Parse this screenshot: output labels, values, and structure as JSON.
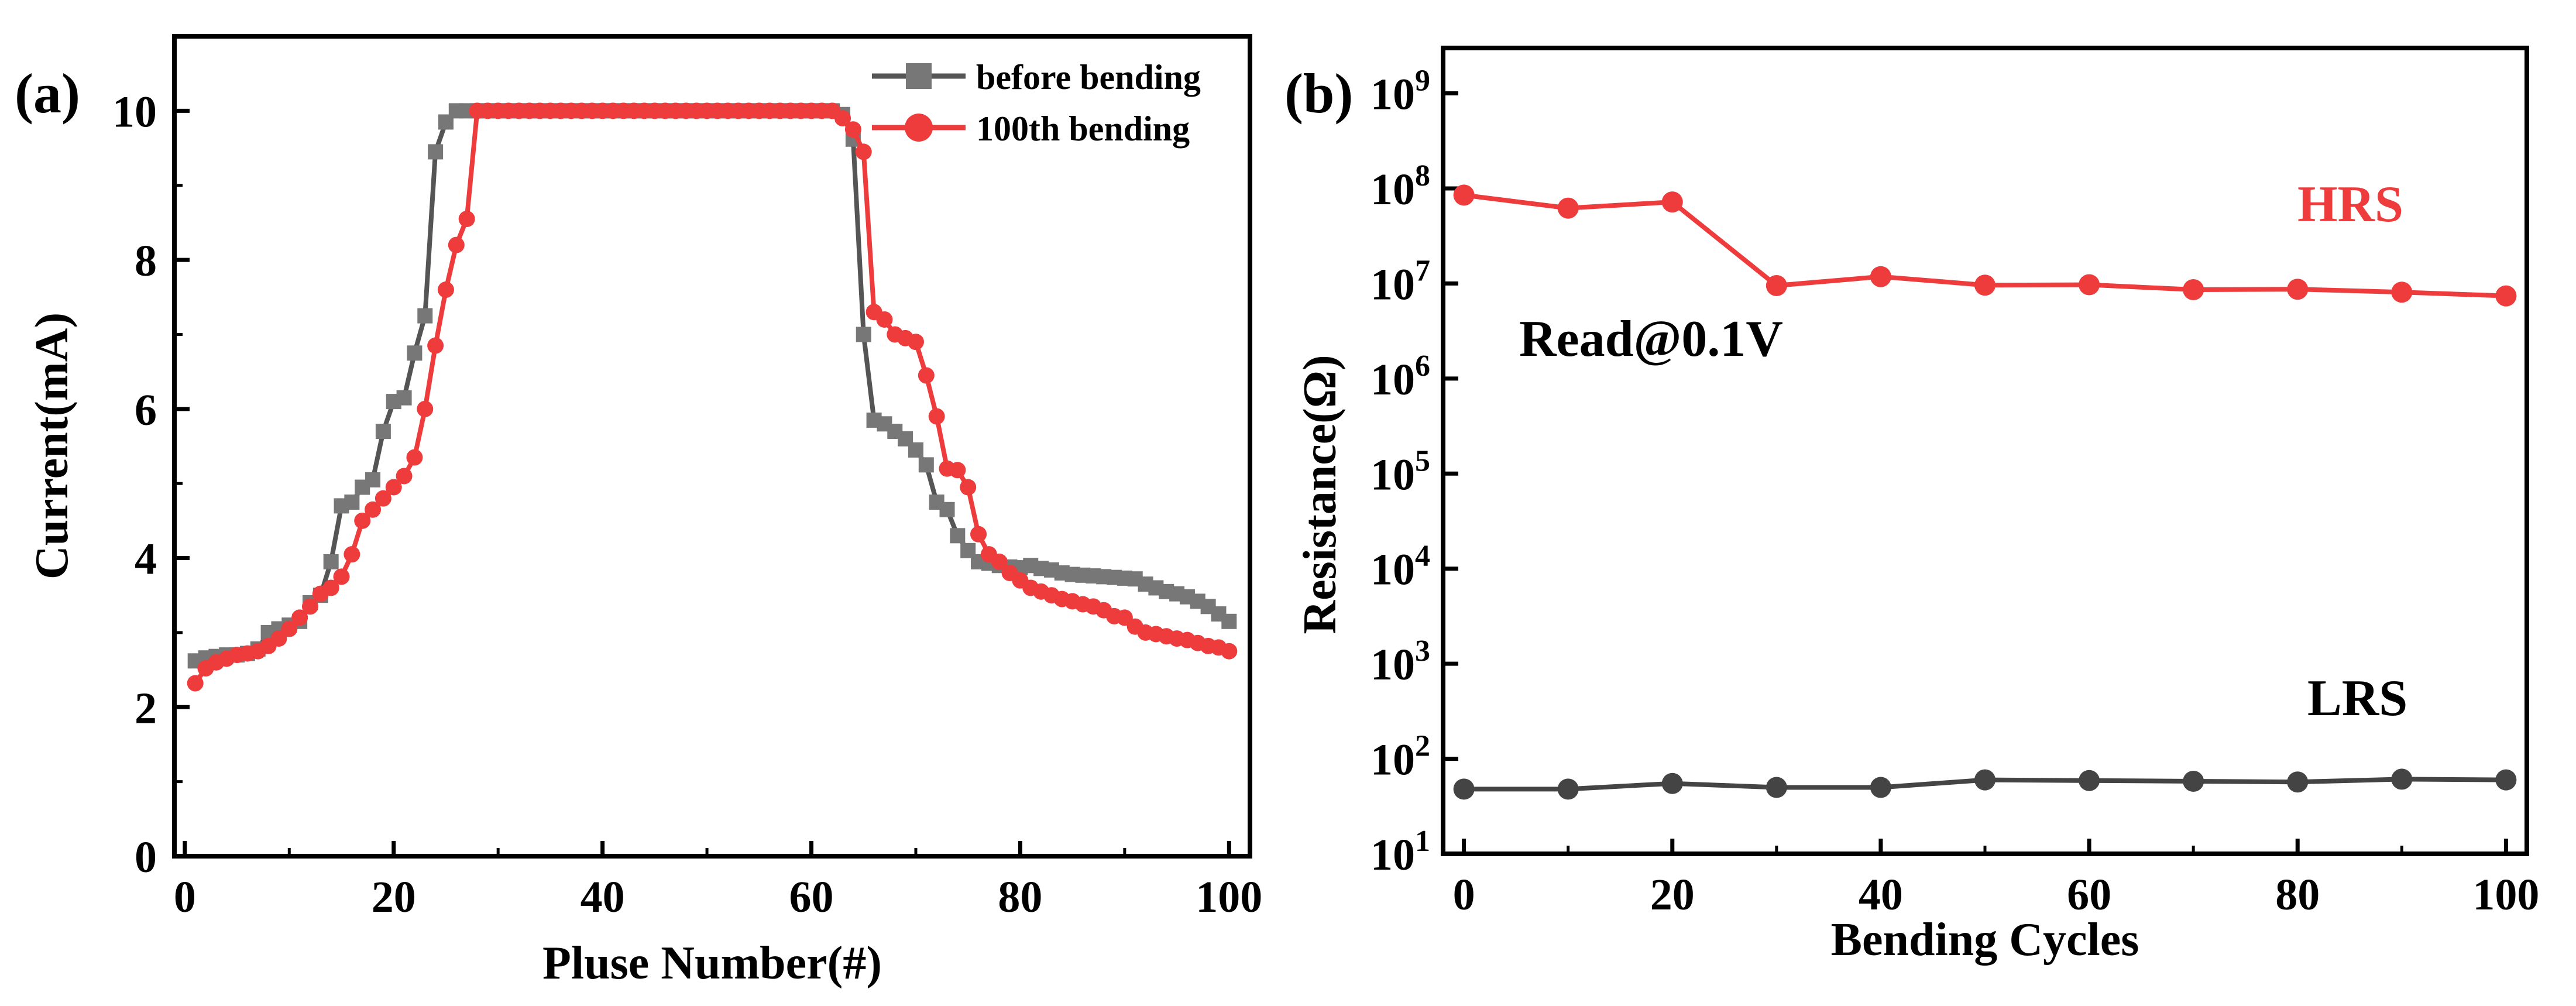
{
  "chart_data": [
    {
      "panel": "(a)",
      "type": "line",
      "xlabel": "Pluse Number(#)",
      "ylabel": "Current(mA)",
      "xlim": [
        -1,
        102
      ],
      "ylim": [
        0,
        11
      ],
      "xticks": [
        0,
        20,
        40,
        60,
        80,
        100
      ],
      "yticks": [
        0,
        2,
        4,
        6,
        8,
        10
      ],
      "xtick_labels": [
        "0",
        "20",
        "40",
        "60",
        "80",
        "100"
      ],
      "ytick_labels": [
        "0",
        "2",
        "4",
        "6",
        "8",
        "10"
      ],
      "legend": {
        "placement": "top-right",
        "entries": [
          "before bending",
          "100th bending"
        ]
      },
      "series": [
        {
          "name": "before bending",
          "color": "#555555",
          "marker": "square",
          "x": [
            1,
            2,
            3,
            4,
            5,
            6,
            7,
            8,
            9,
            10,
            11,
            12,
            13,
            14,
            15,
            16,
            17,
            18,
            19,
            20,
            21,
            22,
            23,
            24,
            25,
            26,
            27,
            28,
            29,
            30,
            31,
            32,
            33,
            34,
            35,
            36,
            37,
            38,
            39,
            40,
            41,
            42,
            43,
            44,
            45,
            46,
            47,
            48,
            49,
            50,
            51,
            52,
            53,
            54,
            55,
            56,
            57,
            58,
            59,
            60,
            61,
            62,
            63,
            64,
            65,
            66,
            67,
            68,
            69,
            70,
            71,
            72,
            73,
            74,
            75,
            76,
            77,
            78,
            79,
            80,
            81,
            82,
            83,
            84,
            85,
            86,
            87,
            88,
            89,
            90,
            91,
            92,
            93,
            94,
            95,
            96,
            97,
            98,
            99,
            100
          ],
          "y": [
            2.62,
            2.66,
            2.68,
            2.7,
            2.7,
            2.72,
            2.78,
            3.0,
            3.05,
            3.1,
            3.15,
            3.4,
            3.5,
            3.95,
            4.7,
            4.75,
            4.95,
            5.05,
            5.7,
            6.1,
            6.15,
            6.75,
            7.25,
            9.45,
            9.85,
            10,
            10,
            10,
            10,
            10,
            10,
            10,
            10,
            10,
            10,
            10,
            10,
            10,
            10,
            10,
            10,
            10,
            10,
            10,
            10,
            10,
            10,
            10,
            10,
            10,
            10,
            10,
            10,
            10,
            10,
            10,
            10,
            10,
            10,
            10,
            10,
            10,
            9.95,
            9.62,
            7.0,
            5.85,
            5.8,
            5.7,
            5.6,
            5.45,
            5.25,
            4.75,
            4.65,
            4.3,
            4.1,
            3.95,
            3.93,
            3.9,
            3.88,
            3.87,
            3.9,
            3.86,
            3.84,
            3.8,
            3.78,
            3.77,
            3.76,
            3.75,
            3.74,
            3.73,
            3.72,
            3.65,
            3.6,
            3.55,
            3.52,
            3.48,
            3.42,
            3.35,
            3.25,
            3.15
          ]
        },
        {
          "name": "100th bending",
          "color": "#ee3b3b",
          "marker": "circle",
          "x": [
            1,
            2,
            3,
            4,
            5,
            6,
            7,
            8,
            9,
            10,
            11,
            12,
            13,
            14,
            15,
            16,
            17,
            18,
            19,
            20,
            21,
            22,
            23,
            24,
            25,
            26,
            27,
            28,
            29,
            30,
            31,
            32,
            33,
            34,
            35,
            36,
            37,
            38,
            39,
            40,
            41,
            42,
            43,
            44,
            45,
            46,
            47,
            48,
            49,
            50,
            51,
            52,
            53,
            54,
            55,
            56,
            57,
            58,
            59,
            60,
            61,
            62,
            63,
            64,
            65,
            66,
            67,
            68,
            69,
            70,
            71,
            72,
            73,
            74,
            75,
            76,
            77,
            78,
            79,
            80,
            81,
            82,
            83,
            84,
            85,
            86,
            87,
            88,
            89,
            90,
            91,
            92,
            93,
            94,
            95,
            96,
            97,
            98,
            99,
            100
          ],
          "y": [
            2.32,
            2.52,
            2.6,
            2.65,
            2.7,
            2.72,
            2.75,
            2.82,
            2.92,
            3.05,
            3.2,
            3.35,
            3.52,
            3.6,
            3.75,
            4.05,
            4.5,
            4.65,
            4.8,
            4.95,
            5.1,
            5.35,
            6.0,
            6.85,
            7.6,
            8.2,
            8.55,
            10,
            10,
            10,
            10,
            10,
            10,
            10,
            10,
            10,
            10,
            10,
            10,
            10,
            10,
            10,
            10,
            10,
            10,
            10,
            10,
            10,
            10,
            10,
            10,
            10,
            10,
            10,
            10,
            10,
            10,
            10,
            10,
            10,
            10,
            10,
            9.9,
            9.75,
            9.45,
            7.3,
            7.2,
            7.0,
            6.95,
            6.9,
            6.45,
            5.9,
            5.2,
            5.18,
            4.95,
            4.32,
            4.05,
            3.95,
            3.8,
            3.7,
            3.6,
            3.55,
            3.5,
            3.45,
            3.42,
            3.38,
            3.35,
            3.3,
            3.22,
            3.2,
            3.08,
            3.0,
            2.98,
            2.95,
            2.92,
            2.9,
            2.86,
            2.82,
            2.8,
            2.75
          ]
        }
      ]
    },
    {
      "panel": "(b)",
      "type": "line",
      "xlabel": "Bending Cycles",
      "ylabel": "Resistance(Ω)",
      "yscale": "log",
      "xlim": [
        -2,
        102
      ],
      "ylim": [
        10,
        3000000000
      ],
      "xticks": [
        0,
        20,
        40,
        60,
        80,
        100
      ],
      "xtick_labels": [
        "0",
        "20",
        "40",
        "60",
        "80",
        "100"
      ],
      "yticks_exp": [
        1,
        2,
        3,
        4,
        5,
        6,
        7,
        8,
        9
      ],
      "series": [
        {
          "name": "HRS",
          "color": "#ee3b3b",
          "marker": "circle",
          "x": [
            0,
            10,
            20,
            30,
            40,
            50,
            60,
            70,
            80,
            90,
            100
          ],
          "y": [
            85000000,
            62000000,
            72000000,
            9500000,
            11800000,
            9600000,
            9700000,
            8600000,
            8700000,
            8100000,
            7400000
          ]
        },
        {
          "name": "LRS",
          "color": "#444444",
          "marker": "circle",
          "x": [
            0,
            10,
            20,
            30,
            40,
            50,
            60,
            70,
            80,
            90,
            100
          ],
          "y": [
            48,
            48,
            55,
            50,
            50,
            60,
            59,
            58,
            57,
            61,
            60
          ]
        }
      ],
      "annotations": [
        {
          "text": "HRS",
          "color": "#ee3b3b"
        },
        {
          "text": "LRS",
          "color": "#000000"
        },
        {
          "text": "Read@0.1V",
          "color": "#000000"
        }
      ]
    }
  ]
}
